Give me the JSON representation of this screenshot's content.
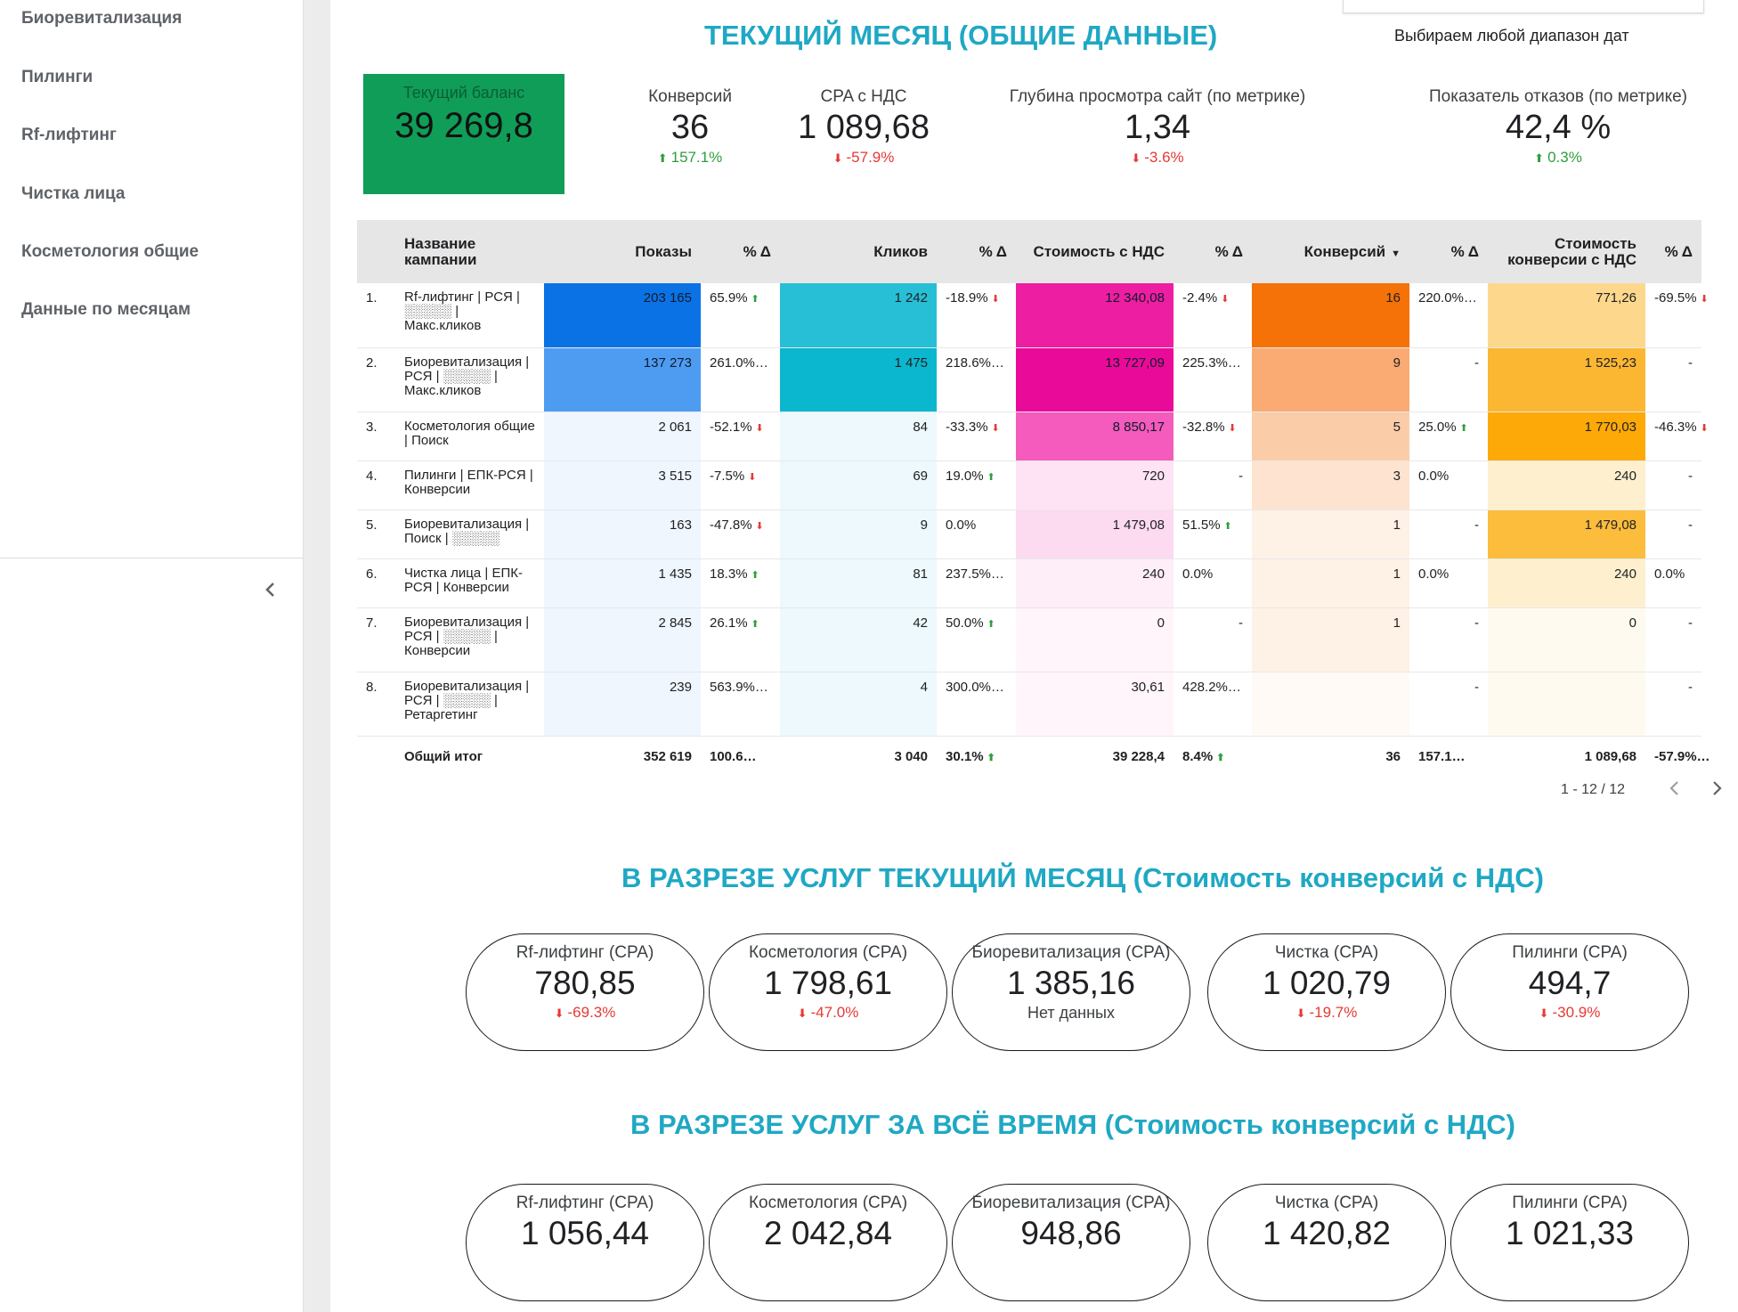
{
  "sidebar": {
    "items": [
      {
        "label": "Биоревитализация"
      },
      {
        "label": "Пилинги"
      },
      {
        "label": "Rf-лифтинг"
      },
      {
        "label": "Чистка лица"
      },
      {
        "label": "Косметология общие"
      },
      {
        "label": "Данные по месяцам"
      }
    ]
  },
  "header": {
    "title": "ТЕКУЩИЙ МЕСЯЦ (ОБЩИЕ ДАННЫЕ)",
    "date_label": "Выбираем любой диапазон дат"
  },
  "balance": {
    "label": "Текущий баланс",
    "value": "39 269,8"
  },
  "kpis": [
    {
      "label": "Конверсий",
      "value": "36",
      "change": "157.1%",
      "dir": "up"
    },
    {
      "label": "CPA с НДС",
      "value": "1 089,68",
      "change": "-57.9%",
      "dir": "down"
    },
    {
      "label": "Глубина просмотра сайт (по метрике)",
      "value": "1,34",
      "change": "-3.6%",
      "dir": "down"
    },
    {
      "label": "Показатель отказов (по метрике)",
      "value": "42,4 %",
      "change": "0.3%",
      "dir": "up"
    }
  ],
  "table": {
    "headers": [
      "Название кампании",
      "Показы",
      "% Δ",
      "Кликов",
      "% Δ",
      "Стоимость с НДС",
      "% Δ",
      "Конверсий",
      "% Δ",
      "Стоимость конверсии с НДС",
      "% Δ"
    ],
    "rows": [
      {
        "n": "1.",
        "name": "Rf-лифтинг | РСЯ | ░░░░░ | Макс.кликов",
        "shows": "203 165",
        "d1": "65.9%",
        "a1": "up",
        "clicks": "1 242",
        "d2": "-18.9%",
        "a2": "down",
        "cost": "12 340,08",
        "d3": "-2.4%",
        "a3": "down",
        "conv": "16",
        "d4": "220.0%…",
        "a4": "",
        "cpa": "771,26",
        "d5": "-69.5%",
        "a5": "down"
      },
      {
        "n": "2.",
        "name": "Биоревитализация | РСЯ | ░░░░░ | Макс.кликов",
        "shows": "137 273",
        "d1": "261.0%…",
        "a1": "",
        "clicks": "1 475",
        "d2": "218.6%…",
        "a2": "",
        "cost": "13 727,09",
        "d3": "225.3%…",
        "a3": "",
        "conv": "9",
        "d4": "-",
        "a4": "",
        "cpa": "1 525,23",
        "d5": "-",
        "a5": ""
      },
      {
        "n": "3.",
        "name": "Косметология общие | Поиск",
        "shows": "2 061",
        "d1": "-52.1%",
        "a1": "down",
        "clicks": "84",
        "d2": "-33.3%",
        "a2": "down",
        "cost": "8 850,17",
        "d3": "-32.8%",
        "a3": "down",
        "conv": "5",
        "d4": "25.0%",
        "a4": "up",
        "cpa": "1 770,03",
        "d5": "-46.3%",
        "a5": "down"
      },
      {
        "n": "4.",
        "name": "Пилинги | ЕПК-РСЯ | Конверсии",
        "shows": "3 515",
        "d1": "-7.5%",
        "a1": "down",
        "clicks": "69",
        "d2": "19.0%",
        "a2": "up",
        "cost": "720",
        "d3": "-",
        "a3": "",
        "conv": "3",
        "d4": "0.0%",
        "a4": "",
        "cpa": "240",
        "d5": "-",
        "a5": ""
      },
      {
        "n": "5.",
        "name": "Биоревитализация | Поиск | ░░░░░",
        "shows": "163",
        "d1": "-47.8%",
        "a1": "down",
        "clicks": "9",
        "d2": "0.0%",
        "a2": "",
        "cost": "1 479,08",
        "d3": "51.5%",
        "a3": "up",
        "conv": "1",
        "d4": "-",
        "a4": "",
        "cpa": "1 479,08",
        "d5": "-",
        "a5": ""
      },
      {
        "n": "6.",
        "name": "Чистка лица | ЕПК-РСЯ | Конверсии",
        "shows": "1 435",
        "d1": "18.3%",
        "a1": "up",
        "clicks": "81",
        "d2": "237.5%…",
        "a2": "",
        "cost": "240",
        "d3": "0.0%",
        "a3": "",
        "conv": "1",
        "d4": "0.0%",
        "a4": "",
        "cpa": "240",
        "d5": "0.0%",
        "a5": ""
      },
      {
        "n": "7.",
        "name": "Биоревитализация | РСЯ | ░░░░░ | Конверсии",
        "shows": "2 845",
        "d1": "26.1%",
        "a1": "up",
        "clicks": "42",
        "d2": "50.0%",
        "a2": "up",
        "cost": "0",
        "d3": "-",
        "a3": "",
        "conv": "1",
        "d4": "-",
        "a4": "",
        "cpa": "0",
        "d5": "-",
        "a5": ""
      },
      {
        "n": "8.",
        "name": "Биоревитализация | РСЯ | ░░░░░ | Ретаргетинг",
        "shows": "239",
        "d1": "563.9%…",
        "a1": "",
        "clicks": "4",
        "d2": "300.0%…",
        "a2": "",
        "cost": "30,61",
        "d3": "428.2%…",
        "a3": "",
        "conv": "",
        "d4": "-",
        "a4": "",
        "cpa": "",
        "d5": "-",
        "a5": ""
      }
    ],
    "total": {
      "label": "Общий итог",
      "shows": "352 619",
      "d1": "100.6…",
      "clicks": "3 040",
      "d2": "30.1%",
      "a2": "up",
      "cost": "39 228,4",
      "d3": "8.4%",
      "a3": "up",
      "conv": "36",
      "d4": "157.1…",
      "cpa": "1 089,68",
      "d5": "-57.9%…"
    },
    "pager": "1 - 12 / 12"
  },
  "heatmap": {
    "shows": [
      "#0b72e6",
      "#4e9cf2",
      "#eff6fd",
      "#eff6fd",
      "#eff6fd",
      "#eff6fd",
      "#eff6fd",
      "#eff6fd"
    ],
    "clicks": [
      "#26bfd6",
      "#0bb7cf",
      "#edf9fc",
      "#edf9fc",
      "#edf9fc",
      "#edf9fc",
      "#edf9fc",
      "#edf9fc"
    ],
    "cost": [
      "#ee1ea2",
      "#ea0a9a",
      "#f55abd",
      "#fde3f3",
      "#fcdaf0",
      "#fdeef8",
      "#fff5fb",
      "#fff5fb"
    ],
    "conv": [
      "#f47208",
      "#f9ab73",
      "#fbcca8",
      "#fde3d0",
      "#fef1e6",
      "#fef1e6",
      "#fef1e6",
      "#fffaf5"
    ],
    "cpa": [
      "#fdd88c",
      "#fbb731",
      "#fda907",
      "#fef0cf",
      "#fcbc3c",
      "#fef0cf",
      "#fffaf0",
      "#fffaf0"
    ]
  },
  "section_month": {
    "title": "В РАЗРЕЗЕ УСЛУГ ТЕКУЩИЙ МЕСЯЦ (Стоимость конверсий с НДС)",
    "cards": [
      {
        "label": "Rf-лифтинг (CPA)",
        "value": "780,85",
        "change": "-69.3%",
        "dir": "down"
      },
      {
        "label": "Косметология (CPA)",
        "value": "1 798,61",
        "change": "-47.0%",
        "dir": "down"
      },
      {
        "label": "Биоревитализация (CPA)",
        "value": "1 385,16",
        "change": "Нет данных",
        "dir": "none"
      },
      {
        "label": "Чистка (CPA)",
        "value": "1 020,79",
        "change": "-19.7%",
        "dir": "down"
      },
      {
        "label": "Пилинги (CPA)",
        "value": "494,7",
        "change": "-30.9%",
        "dir": "down"
      }
    ]
  },
  "section_all": {
    "title": "В РАЗРЕЗЕ УСЛУГ ЗА ВСЁ ВРЕМЯ (Стоимость конверсий с НДС)",
    "cards": [
      {
        "label": "Rf-лифтинг (CPA)",
        "value": "1 056,44"
      },
      {
        "label": "Косметология (CPA)",
        "value": "2 042,84"
      },
      {
        "label": "Биоревитализация (CPA)",
        "value": "948,86"
      },
      {
        "label": "Чистка (CPA)",
        "value": "1 420,82"
      },
      {
        "label": "Пилинги (CPA)",
        "value": "1 021,33"
      }
    ]
  },
  "colors": {
    "accent": "#1fa8c4",
    "balance": "#0f9d58",
    "up": "#2e9e3e",
    "down": "#e53935"
  }
}
